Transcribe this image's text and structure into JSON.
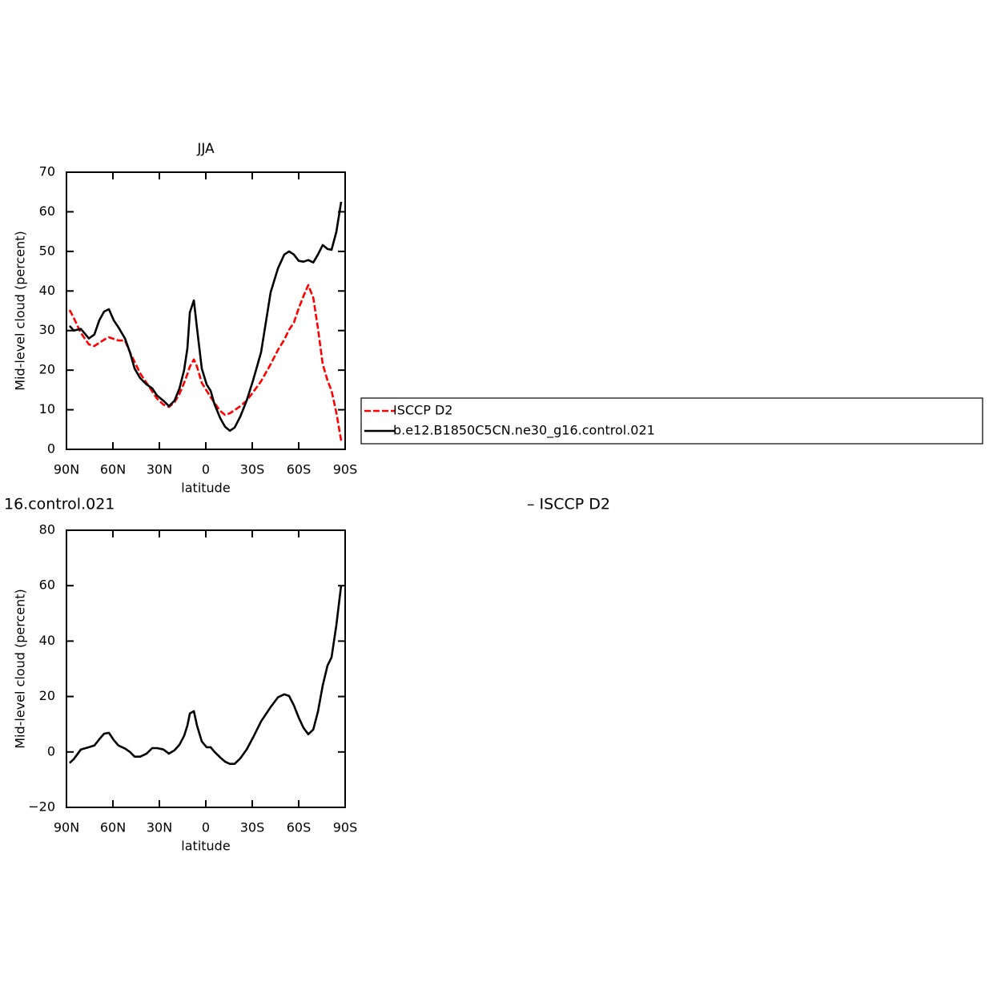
{
  "chart_data": [
    {
      "type": "line",
      "title": "JJA",
      "xlabel": "latitude",
      "ylabel": "Mid-level cloud (percent)",
      "xlim": [
        90,
        -90
      ],
      "ylim": [
        0,
        70
      ],
      "xticks": [
        {
          "value": 90,
          "label": "90N"
        },
        {
          "value": 60,
          "label": "60N"
        },
        {
          "value": 30,
          "label": "30N"
        },
        0,
        {
          "value": -30,
          "label": "30S"
        },
        {
          "value": -60,
          "label": "60S"
        },
        {
          "value": -90,
          "label": "90S"
        }
      ],
      "yticks": [
        0,
        10,
        20,
        30,
        40,
        50,
        60,
        70
      ],
      "legend": "right",
      "x": [
        88,
        85.3,
        80.7,
        75.5,
        72,
        68.8,
        65.7,
        62.6,
        59.5,
        56.4,
        52.2,
        49,
        46,
        42.4,
        38.3,
        34.6,
        31.5,
        27.4,
        23.8,
        20.2,
        17,
        14,
        11.9,
        10.3,
        7.7,
        5.7,
        2.6,
        -0.5,
        -3.1,
        -5.7,
        -9.3,
        -12.4,
        -15.5,
        -18.6,
        -22.3,
        -26.4,
        -30.5,
        -35.7,
        -41.9,
        -46.6,
        -50.7,
        -53.8,
        -56.9,
        -60,
        -63.1,
        -66.2,
        -69.4,
        -72.4,
        -75.5,
        -78.6,
        -81.2,
        -84.3,
        -87.4
      ],
      "series": [
        {
          "name": "ISCCP D2",
          "color": "#ff0000",
          "dashed": true,
          "values": [
            35.2,
            33.2,
            29.4,
            26.5,
            26.1,
            26.9,
            27.7,
            28.3,
            27.9,
            27.5,
            27.5,
            24.5,
            22.1,
            19.2,
            16.8,
            14.6,
            12.8,
            11.3,
            10.7,
            11.9,
            14,
            16.8,
            19,
            20.9,
            22.7,
            20.9,
            16.8,
            14.8,
            13.2,
            11.7,
            9.7,
            8.7,
            9.1,
            9.9,
            10.9,
            12.3,
            14.4,
            17.2,
            21.5,
            25.1,
            27.7,
            30.2,
            32,
            35.6,
            38.7,
            41.5,
            38.3,
            30.6,
            21.5,
            17.4,
            14.8,
            9.3,
            2.2
          ]
        },
        {
          "name": "b.e12.B1850C5CN.ne30_g16.control.021",
          "color": "#000000",
          "dashed": false,
          "values": [
            31.2,
            30,
            30.4,
            28,
            29,
            32.6,
            34.8,
            35.4,
            32.6,
            30.8,
            28,
            24.5,
            20.4,
            18,
            16.4,
            15.4,
            13.6,
            12.3,
            10.9,
            12.3,
            15.4,
            20,
            25.5,
            34.6,
            37.6,
            30.6,
            20.4,
            16.4,
            14.8,
            11.3,
            7.9,
            5.7,
            4.7,
            5.5,
            8.3,
            12.3,
            17.4,
            24.5,
            39.7,
            45.7,
            49.2,
            50,
            49.2,
            47.6,
            47.4,
            47.8,
            47.2,
            49.2,
            51.6,
            50.6,
            50.4,
            54.9,
            62.5
          ]
        }
      ]
    },
    {
      "type": "line",
      "title": "16.control.021",
      "subtitle": "– ISCCP D2",
      "xlabel": "latitude",
      "ylabel": "Mid-level cloud (percent)",
      "xlim": [
        90,
        -90
      ],
      "ylim": [
        -20,
        80
      ],
      "xticks": [
        {
          "value": 90,
          "label": "90N"
        },
        {
          "value": 60,
          "label": "60N"
        },
        {
          "value": 30,
          "label": "30N"
        },
        0,
        {
          "value": -30,
          "label": "30S"
        },
        {
          "value": -60,
          "label": "60S"
        },
        {
          "value": -90,
          "label": "90S"
        }
      ],
      "yticks": [
        {
          "value": -20,
          "label": "−20"
        },
        0,
        20,
        40,
        60,
        80
      ],
      "x": [
        88,
        85.3,
        80.7,
        75.5,
        72,
        68.8,
        65.7,
        62.6,
        59.5,
        56.4,
        52.2,
        49,
        46,
        42.4,
        38.3,
        34.6,
        31.5,
        27.4,
        23.8,
        20.2,
        17,
        14,
        11.9,
        10.3,
        7.7,
        5.7,
        2.6,
        -0.5,
        -3.1,
        -5.7,
        -9.3,
        -12.4,
        -15.5,
        -18.6,
        -22.3,
        -26.4,
        -30.5,
        -35.7,
        -41.9,
        -46.6,
        -50.7,
        -53.8,
        -56.9,
        -60,
        -63.1,
        -66.2,
        -69.4,
        -72.4,
        -75.5,
        -78.6,
        -81.2,
        -84.3,
        -87.4
      ],
      "series": [
        {
          "color": "#000000",
          "dashed": false,
          "values": [
            -4,
            -2.6,
            0.9,
            1.7,
            2.3,
            4.6,
            6.6,
            6.9,
            4.3,
            2.3,
            1.2,
            0,
            -1.7,
            -1.7,
            -0.6,
            1.4,
            1.4,
            0.9,
            -0.6,
            0.6,
            2.6,
            5.8,
            9.5,
            13.9,
            14.7,
            9.5,
            3.8,
            1.7,
            1.7,
            0,
            -2,
            -3.5,
            -4.3,
            -4.3,
            -2.3,
            0.9,
            5.2,
            11,
            16.2,
            19.7,
            20.8,
            20.2,
            16.8,
            12.4,
            8.7,
            6.4,
            8.1,
            14.5,
            24,
            31.2,
            34.1,
            45.7,
            60.1
          ]
        }
      ]
    }
  ]
}
